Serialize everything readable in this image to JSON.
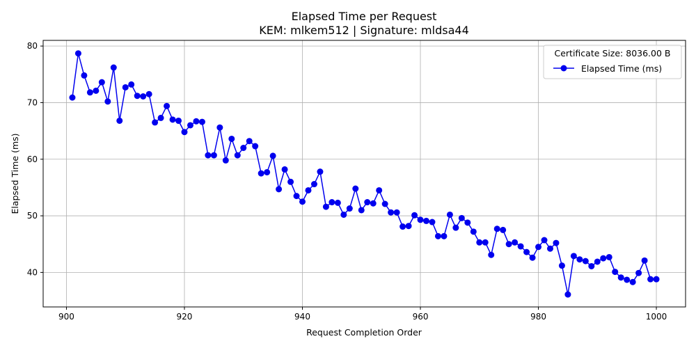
{
  "chart_data": {
    "type": "line",
    "title": "Elapsed Time per Request",
    "subtitle": "KEM: mlkem512 | Signature: mldsa44",
    "xlabel": "Request Completion Order",
    "ylabel": "Elapsed Time (ms)",
    "xlim": [
      896.05,
      1004.95
    ],
    "ylim": [
      33.9,
      81.0
    ],
    "xticks": [
      900,
      920,
      940,
      960,
      980,
      1000
    ],
    "yticks": [
      40,
      50,
      60,
      70,
      80
    ],
    "grid": true,
    "legend": {
      "placement": "top-right",
      "title": "Certificate Size: 8036.00 B",
      "entries": [
        "Elapsed Time (ms)"
      ]
    },
    "series": [
      {
        "name": "Elapsed Time (ms)",
        "color": "#0000ee",
        "marker": "circle",
        "x": [
          901,
          902,
          903,
          904,
          905,
          906,
          907,
          908,
          909,
          910,
          911,
          912,
          913,
          914,
          915,
          916,
          917,
          918,
          919,
          920,
          921,
          922,
          923,
          924,
          925,
          926,
          927,
          928,
          929,
          930,
          931,
          932,
          933,
          934,
          935,
          936,
          937,
          938,
          939,
          940,
          941,
          942,
          943,
          944,
          945,
          946,
          947,
          948,
          949,
          950,
          951,
          952,
          953,
          954,
          955,
          956,
          957,
          958,
          959,
          960,
          961,
          962,
          963,
          964,
          965,
          966,
          967,
          968,
          969,
          970,
          971,
          972,
          973,
          974,
          975,
          976,
          977,
          978,
          979,
          980,
          981,
          982,
          983,
          984,
          985,
          986,
          987,
          988,
          989,
          990,
          991,
          992,
          993,
          994,
          995,
          996,
          997,
          998,
          999,
          1000
        ],
        "values": [
          70.9,
          78.7,
          74.8,
          71.8,
          72.1,
          73.6,
          70.2,
          76.2,
          66.8,
          72.7,
          73.2,
          71.2,
          71.1,
          71.5,
          66.5,
          67.3,
          69.4,
          67.0,
          66.8,
          64.8,
          66.0,
          66.7,
          66.6,
          60.7,
          60.7,
          65.6,
          59.8,
          63.6,
          60.7,
          62.0,
          63.2,
          62.3,
          57.5,
          57.7,
          60.6,
          54.7,
          58.2,
          56.0,
          53.5,
          52.5,
          54.5,
          55.6,
          57.8,
          51.6,
          52.4,
          52.3,
          50.2,
          51.3,
          54.8,
          51.0,
          52.4,
          52.2,
          54.5,
          52.1,
          50.6,
          50.6,
          48.1,
          48.2,
          50.1,
          49.3,
          49.1,
          48.9,
          46.4,
          46.4,
          50.2,
          47.9,
          49.6,
          48.8,
          47.2,
          45.3,
          45.3,
          43.1,
          47.7,
          47.5,
          45.0,
          45.3,
          44.6,
          43.6,
          42.6,
          44.5,
          45.7,
          44.2,
          45.2,
          41.2,
          36.1,
          42.9,
          42.3,
          42.0,
          41.1,
          41.9,
          42.5,
          42.7,
          40.1,
          39.1,
          38.7,
          38.3,
          39.9,
          42.1,
          38.8,
          38.8
        ]
      }
    ]
  }
}
